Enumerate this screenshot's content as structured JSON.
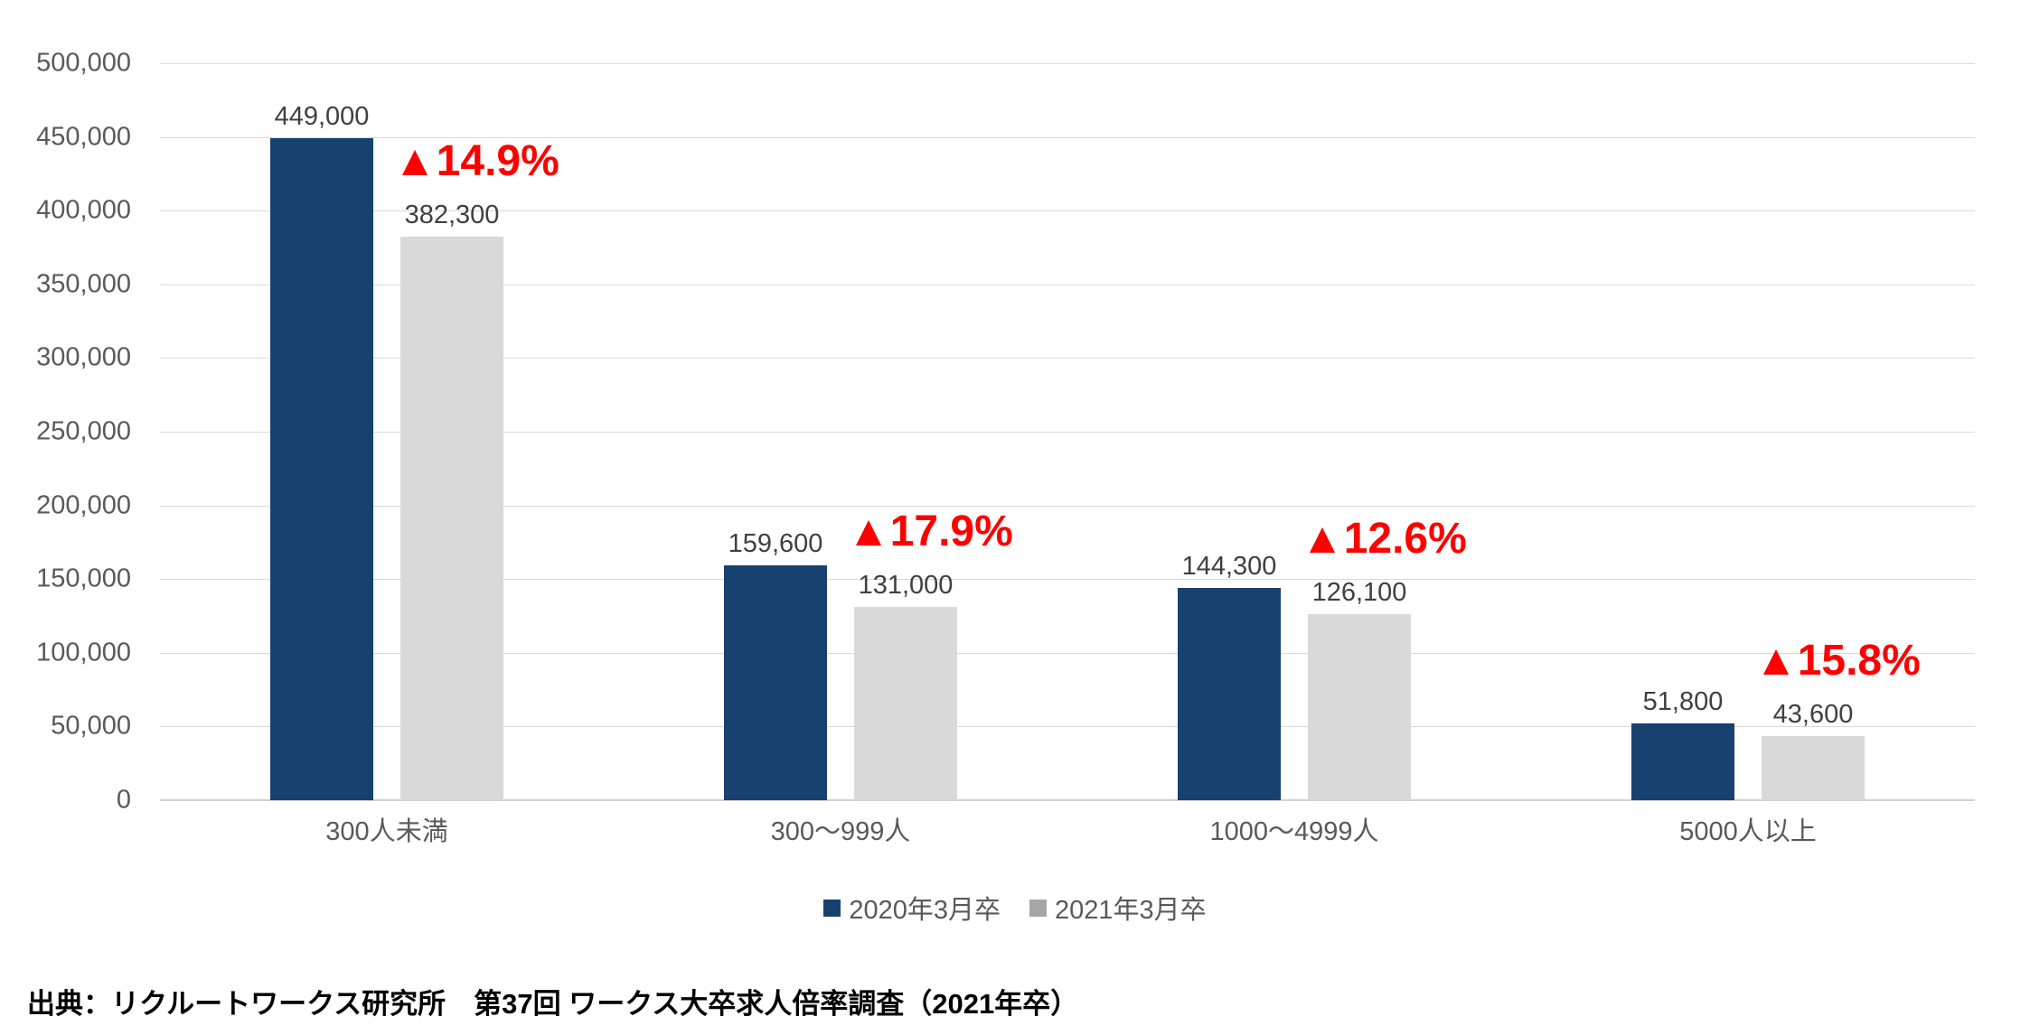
{
  "chart_data": {
    "type": "bar",
    "title": "",
    "categories": [
      "300人未満",
      "300～999人",
      "1000～4999人",
      "5000人以上"
    ],
    "series": [
      {
        "name": "2020年3月卒",
        "color": "#17416E",
        "values": [
          449000,
          159600,
          144300,
          51800
        ],
        "value_labels": [
          "449,000",
          "159,600",
          "144,300",
          "51,800"
        ]
      },
      {
        "name": "2021年3月卒",
        "color": "#D9D9D9",
        "values": [
          382300,
          131000,
          126100,
          43600
        ],
        "value_labels": [
          "382,300",
          "131,000",
          "126,100",
          "43,600"
        ]
      }
    ],
    "change_labels": {
      "color": "#FF0000",
      "values": [
        "▲14.9%",
        "▲17.9%",
        "▲12.6%",
        "▲15.8%"
      ]
    },
    "y_axis": {
      "min": 0,
      "max": 500000,
      "step": 50000,
      "tick_labels": [
        "0",
        "50,000",
        "100,000",
        "150,000",
        "200,000",
        "250,000",
        "300,000",
        "350,000",
        "400,000",
        "450,000",
        "500,000"
      ]
    },
    "legend": {
      "position": "bottom-center",
      "items": [
        {
          "label": "2020年3月卒",
          "marker_color": "#17416E"
        },
        {
          "label": "2021年3月卒",
          "marker_color": "#A6A6A6"
        }
      ]
    },
    "grid": "horizontal",
    "colors": {
      "grid_line": "#D9D9D9",
      "axis_line": "#D0D0D0",
      "tick_text": "#595959",
      "category_text": "#595959",
      "value_text": "#404040",
      "legend_text": "#595959"
    }
  },
  "footer": {
    "source_note": "出典：リクルートワークス研究所　第37回 ワークス大卒求人倍率調査（2021年卒）"
  }
}
